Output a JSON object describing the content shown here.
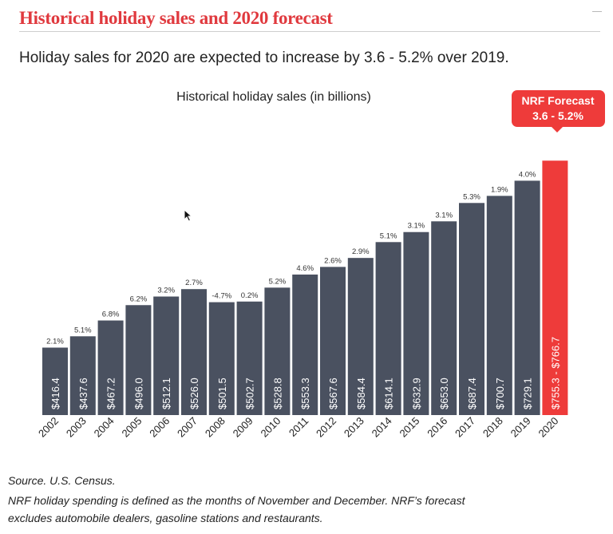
{
  "page": {
    "title": "Historical holiday sales and 2020 forecast",
    "subtitle": "Holiday sales for 2020 are expected to increase by 3.6 - 5.2% over 2019."
  },
  "chart_data": {
    "type": "bar",
    "title": "Historical holiday sales (in billions)",
    "categories": [
      "2002",
      "2003",
      "2004",
      "2005",
      "2006",
      "2007",
      "2008",
      "2009",
      "2010",
      "2011",
      "2012",
      "2013",
      "2014",
      "2015",
      "2016",
      "2017",
      "2018",
      "2019",
      "2020"
    ],
    "values": [
      416.4,
      437.6,
      467.2,
      496.0,
      512.1,
      526.0,
      501.5,
      502.7,
      528.8,
      553.3,
      567.6,
      584.4,
      614.1,
      632.9,
      653.0,
      687.4,
      700.7,
      729.1,
      766.7
    ],
    "value_labels": [
      "$416.4",
      "$437.6",
      "$467.2",
      "$496.0",
      "$512.1",
      "$526.0",
      "$501.5",
      "$502.7",
      "$528.8",
      "$553.3",
      "$567.6",
      "$584.4",
      "$614.1",
      "$632.9",
      "$653.0",
      "$687.4",
      "$700.7",
      "$729.1",
      "$755.3 - $766.7"
    ],
    "growth_labels": [
      "2.1%",
      "5.1%",
      "6.8%",
      "6.2%",
      "3.2%",
      "2.7%",
      "-4.7%",
      "0.2%",
      "5.2%",
      "4.6%",
      "2.6%",
      "2.9%",
      "5.1%",
      "3.1%",
      "3.1%",
      "5.3%",
      "1.9%",
      "4.0%",
      ""
    ],
    "forecast": {
      "category": "2020",
      "range": [
        755.3,
        766.7
      ],
      "callout_title": "NRF Forecast",
      "callout_range": "3.6 - 5.2%"
    },
    "xlabel": "",
    "ylabel": "",
    "ylim": [
      290,
      800
    ],
    "grid": false,
    "legend": false,
    "colors": {
      "bar": "#4a5160",
      "forecast": "#ee3b3a",
      "label": "#ffffff"
    }
  },
  "footnotes": {
    "source": "Source. U.S. Census.",
    "line1": "NRF holiday spending is defined as the months of November and December. NRF’s forecast",
    "line2": "excludes automobile dealers, gasoline stations and restaurants."
  }
}
